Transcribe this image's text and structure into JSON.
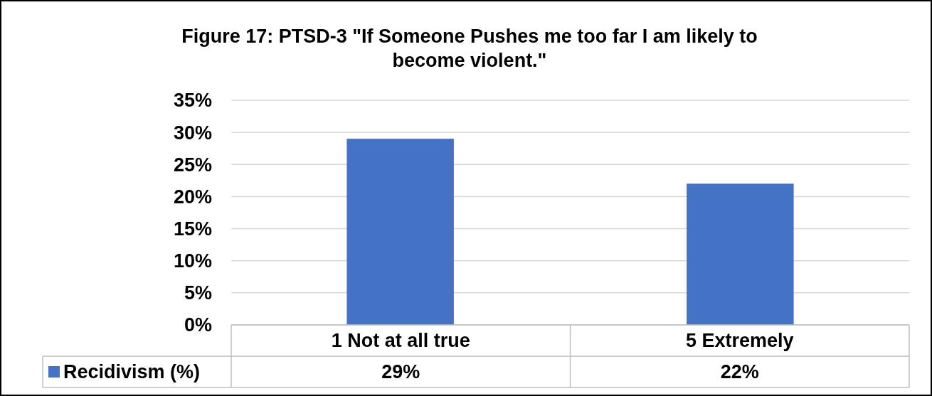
{
  "chart_data": {
    "type": "bar",
    "title": "Figure 17: PTSD-3 \"If Someone Pushes me too far I am likely to become violent.\"",
    "categories": [
      "1 Not at all true",
      "5 Extremely"
    ],
    "series": [
      {
        "name": "Recidivism (%)",
        "color": "#4472c4",
        "values": [
          29,
          22
        ],
        "value_labels": [
          "29%",
          "22%"
        ]
      }
    ],
    "ylim": [
      0,
      35
    ],
    "yticks": [
      {
        "value": 0,
        "label": "0%"
      },
      {
        "value": 5,
        "label": "5%"
      },
      {
        "value": 10,
        "label": "10%"
      },
      {
        "value": 15,
        "label": "15%"
      },
      {
        "value": 20,
        "label": "20%"
      },
      {
        "value": 25,
        "label": "25%"
      },
      {
        "value": 30,
        "label": "30%"
      },
      {
        "value": 35,
        "label": "35%"
      }
    ],
    "grid": "y",
    "legend": "bottom"
  }
}
